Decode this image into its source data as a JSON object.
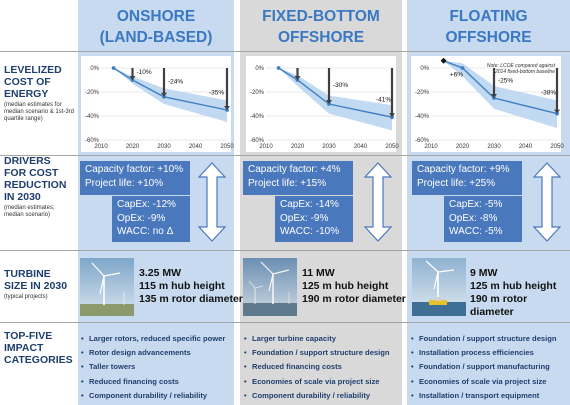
{
  "columns": [
    {
      "title_line1": "ONSHORE",
      "title_line2": "(LAND-BASED)"
    },
    {
      "title_line1": "FIXED-BOTTOM",
      "title_line2": "OFFSHORE"
    },
    {
      "title_line1": "FLOATING",
      "title_line2": "OFFSHORE"
    }
  ],
  "rows": {
    "lcoe": {
      "title": "LEVELIZED COST OF ENERGY",
      "sub": "(median estimates for median scenario & 1st-3rd quartile range)"
    },
    "drivers": {
      "title": "DRIVERS FOR COST REDUCTION IN 2030",
      "sub": "(median estimates; median scenario)"
    },
    "turbine": {
      "title": "TURBINE SIZE IN 2030",
      "sub": "(typical projects)"
    },
    "impacts": {
      "title": "TOP-FIVE IMPACT CATEGORIES",
      "sub": ""
    }
  },
  "chart_data": [
    {
      "type": "line",
      "x": [
        2014,
        2020,
        2030,
        2050
      ],
      "median": [
        0,
        -10,
        -24,
        -35
      ],
      "band_low": [
        0,
        -13,
        -30,
        -45
      ],
      "band_high": [
        0,
        -7,
        -17,
        -27
      ],
      "annotations": [
        "-10%",
        "-24%",
        "-35%"
      ],
      "xticks": [
        "2010",
        "2020",
        "2030",
        "2040",
        "2050"
      ],
      "yticks": [
        "0%",
        "-20%",
        "-40%",
        "-60%"
      ],
      "xlim": [
        2010,
        2050
      ],
      "ylim": [
        -60,
        5
      ],
      "grid": true
    },
    {
      "type": "line",
      "x": [
        2014,
        2020,
        2030,
        2050
      ],
      "median": [
        0,
        -10,
        -30,
        -41
      ],
      "band_low": [
        0,
        -15,
        -38,
        -52
      ],
      "band_high": [
        0,
        -6,
        -23,
        -31
      ],
      "annotations": [
        "-30%",
        "-41%"
      ],
      "xticks": [
        "2010",
        "2020",
        "2030",
        "2040",
        "2050"
      ],
      "yticks": [
        "0%",
        "-20%",
        "-40%",
        "-60%"
      ],
      "xlim": [
        2010,
        2050
      ],
      "ylim": [
        -60,
        5
      ],
      "grid": true
    },
    {
      "type": "line",
      "x": [
        2014,
        2020,
        2030,
        2050
      ],
      "median": [
        6,
        0,
        -25,
        -38
      ],
      "band_low": [
        6,
        -7,
        -34,
        -50
      ],
      "band_high": [
        6,
        4,
        -15,
        -27
      ],
      "annotations": [
        "+6%",
        "-25%",
        "-38%"
      ],
      "note_line1": "Note: LCOE compared against",
      "note_line2": "2014 fixed-bottom baseline",
      "xticks": [
        "2010",
        "2020",
        "2030",
        "2040",
        "2050"
      ],
      "yticks": [
        "0%",
        "-20%",
        "-40%",
        "-60%"
      ],
      "xlim": [
        2010,
        2050
      ],
      "ylim": [
        -60,
        5
      ],
      "grid": true
    }
  ],
  "drivers": [
    {
      "cf": "Capacity factor: +10%",
      "life": "Project life: +10%",
      "capex": "CapEx: -12%",
      "opex": "OpEx: -9%",
      "wacc": "WACC: no Δ"
    },
    {
      "cf": "Capacity factor: +4%",
      "life": "Project life: +15%",
      "capex": "CapEx: -14%",
      "opex": "OpEx: -9%",
      "wacc": "WACC: -10%"
    },
    {
      "cf": "Capacity factor: +9%",
      "life": "Project life: +25%",
      "capex": "CapEx: -5%",
      "opex": "OpEx: -8%",
      "wacc": "WACC: -5%"
    }
  ],
  "turbines": [
    {
      "mw": "3.25 MW",
      "hub": "115 m hub height",
      "rotor": "135 m rotor diameter"
    },
    {
      "mw": "11 MW",
      "hub": "125 m hub height",
      "rotor": "190 m rotor diameter"
    },
    {
      "mw": "9 MW",
      "hub": "125 m hub height",
      "rotor": "190 m rotor diameter"
    }
  ],
  "impacts": [
    [
      "Larger rotors, reduced specific power",
      "Rotor design advancements",
      "Taller towers",
      "Reduced financing costs",
      "Component durability / reliability"
    ],
    [
      "Larger turbine capacity",
      "Foundation / support structure design",
      "Reduced financing costs",
      "Economies of scale via project size",
      "Component durability / reliability"
    ],
    [
      "Foundation / support structure design",
      "Installation process efficiencies",
      "Foundation / support manufacturing",
      "Economies of scale via project size",
      "Installation / transport equipment"
    ]
  ],
  "colors": {
    "title_blue": "#3b78c3",
    "column_blue": "#c8daef",
    "column_gray": "#d9d9d9",
    "driver_box": "#4a78bd",
    "median_line": "#3f7fc4",
    "band": "#b7d3ee",
    "arrow": "#404040"
  },
  "icons": [
    "double-arrow-icon",
    "turbine-photo-icon",
    "bullet-icon"
  ]
}
